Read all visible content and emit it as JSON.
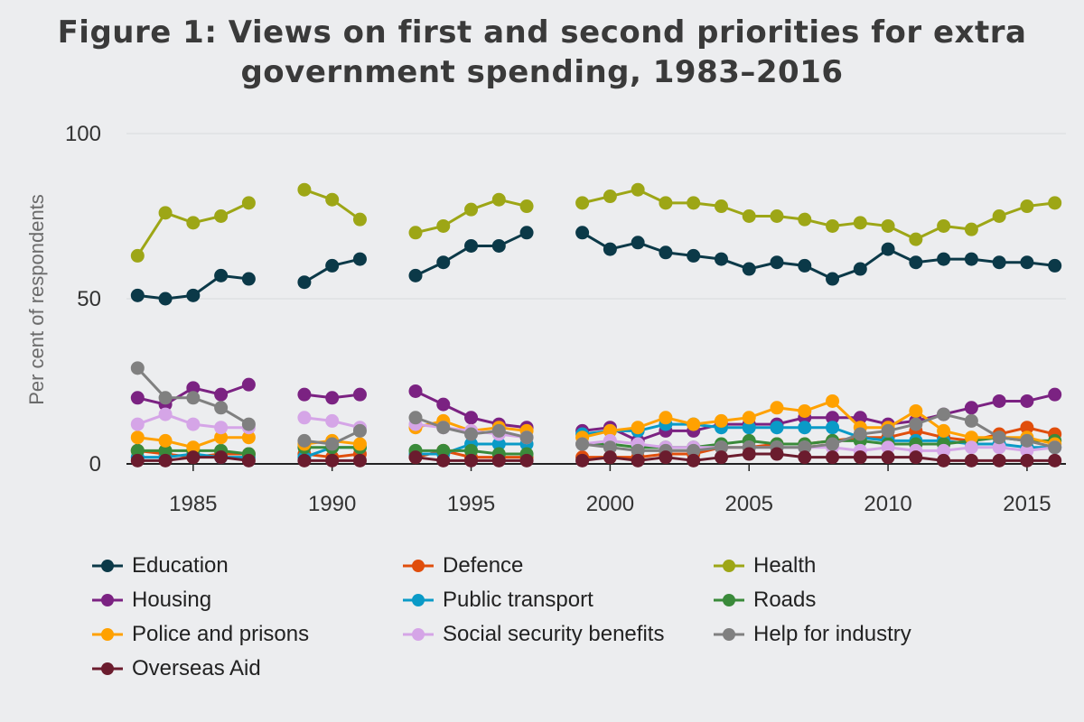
{
  "title_lines": [
    "Figure 1: Views on first and second priorities for extra",
    "government spending, 1983–2016"
  ],
  "chart_data": {
    "type": "line",
    "title": "Figure 1: Views on first and second priorities for extra government spending, 1983–2016",
    "xlabel": "",
    "ylabel": "Per cent of respondents",
    "xlim": [
      1982.6,
      2016.4
    ],
    "ylim": [
      0,
      100
    ],
    "yticks": [
      0,
      50,
      100
    ],
    "xticks": [
      1985,
      1990,
      1995,
      2000,
      2005,
      2010,
      2015
    ],
    "grid": "horizontal",
    "legend_position": "bottom",
    "x": [
      1983,
      1984,
      1985,
      1986,
      1987,
      1989,
      1990,
      1991,
      1993,
      1994,
      1995,
      1996,
      1997,
      1999,
      2000,
      2001,
      2002,
      2003,
      2004,
      2005,
      2006,
      2007,
      2008,
      2009,
      2010,
      2011,
      2012,
      2013,
      2014,
      2015,
      2016
    ],
    "series": [
      {
        "name": "Education",
        "color": "#0B3948",
        "values": [
          51,
          50,
          51,
          57,
          56,
          55,
          60,
          62,
          57,
          61,
          66,
          66,
          70,
          70,
          65,
          67,
          64,
          63,
          62,
          59,
          61,
          60,
          56,
          59,
          65,
          61,
          62,
          62,
          61,
          61,
          60
        ]
      },
      {
        "name": "Defence",
        "color": "#E04E0C",
        "values": [
          4,
          3,
          2,
          3,
          3,
          3,
          2,
          3,
          2,
          4,
          2,
          2,
          2,
          2,
          2,
          2,
          3,
          3,
          5,
          5,
          6,
          6,
          7,
          8,
          8,
          10,
          8,
          7,
          9,
          11,
          9
        ]
      },
      {
        "name": "Health",
        "color": "#9DA616",
        "values": [
          63,
          76,
          73,
          75,
          79,
          83,
          80,
          74,
          70,
          72,
          77,
          80,
          78,
          79,
          81,
          83,
          79,
          79,
          78,
          75,
          75,
          74,
          72,
          73,
          72,
          68,
          72,
          71,
          75,
          78,
          79
        ]
      },
      {
        "name": "Housing",
        "color": "#7B2282",
        "values": [
          20,
          18,
          23,
          21,
          24,
          21,
          20,
          21,
          22,
          18,
          14,
          12,
          11,
          10,
          11,
          7,
          10,
          10,
          12,
          12,
          12,
          14,
          14,
          14,
          12,
          13,
          15,
          17,
          19,
          19,
          21
        ]
      },
      {
        "name": "Public transport",
        "color": "#0A9AC7",
        "values": [
          2,
          2,
          3,
          2,
          2,
          2,
          5,
          5,
          3,
          3,
          6,
          6,
          6,
          9,
          10,
          10,
          12,
          12,
          11,
          11,
          11,
          11,
          11,
          8,
          7,
          7,
          7,
          6,
          6,
          5,
          5
        ]
      },
      {
        "name": "Roads",
        "color": "#3A8A3A",
        "values": [
          4,
          4,
          4,
          4,
          3,
          5,
          5,
          5,
          4,
          4,
          4,
          3,
          3,
          6,
          6,
          5,
          5,
          5,
          6,
          7,
          6,
          6,
          7,
          7,
          6,
          6,
          6,
          7,
          8,
          7,
          7
        ]
      },
      {
        "name": "Police and prisons",
        "color": "#FFA100",
        "values": [
          8,
          7,
          5,
          8,
          8,
          6,
          7,
          6,
          11,
          13,
          10,
          11,
          10,
          8,
          10,
          11,
          14,
          12,
          13,
          14,
          17,
          16,
          19,
          11,
          11,
          16,
          10,
          8,
          8,
          8,
          6
        ]
      },
      {
        "name": "Social security benefits",
        "color": "#D5A5E7",
        "values": [
          12,
          15,
          12,
          11,
          11,
          14,
          13,
          11,
          12,
          11,
          10,
          9,
          8,
          6,
          7,
          6,
          5,
          5,
          5,
          5,
          5,
          5,
          5,
          4,
          5,
          4,
          4,
          5,
          5,
          4,
          5
        ]
      },
      {
        "name": "Help for industry",
        "color": "#808080",
        "values": [
          29,
          20,
          20,
          17,
          12,
          7,
          6,
          10,
          14,
          11,
          9,
          10,
          8,
          6,
          5,
          4,
          4,
          4,
          5,
          5,
          5,
          5,
          6,
          9,
          10,
          12,
          15,
          13,
          8,
          7,
          5
        ]
      },
      {
        "name": "Overseas Aid",
        "color": "#6B1C2E",
        "values": [
          1,
          1,
          2,
          2,
          1,
          1,
          1,
          1,
          2,
          1,
          1,
          1,
          1,
          1,
          2,
          1,
          2,
          1,
          2,
          3,
          3,
          2,
          2,
          2,
          2,
          2,
          1,
          1,
          1,
          1,
          1
        ]
      }
    ]
  }
}
